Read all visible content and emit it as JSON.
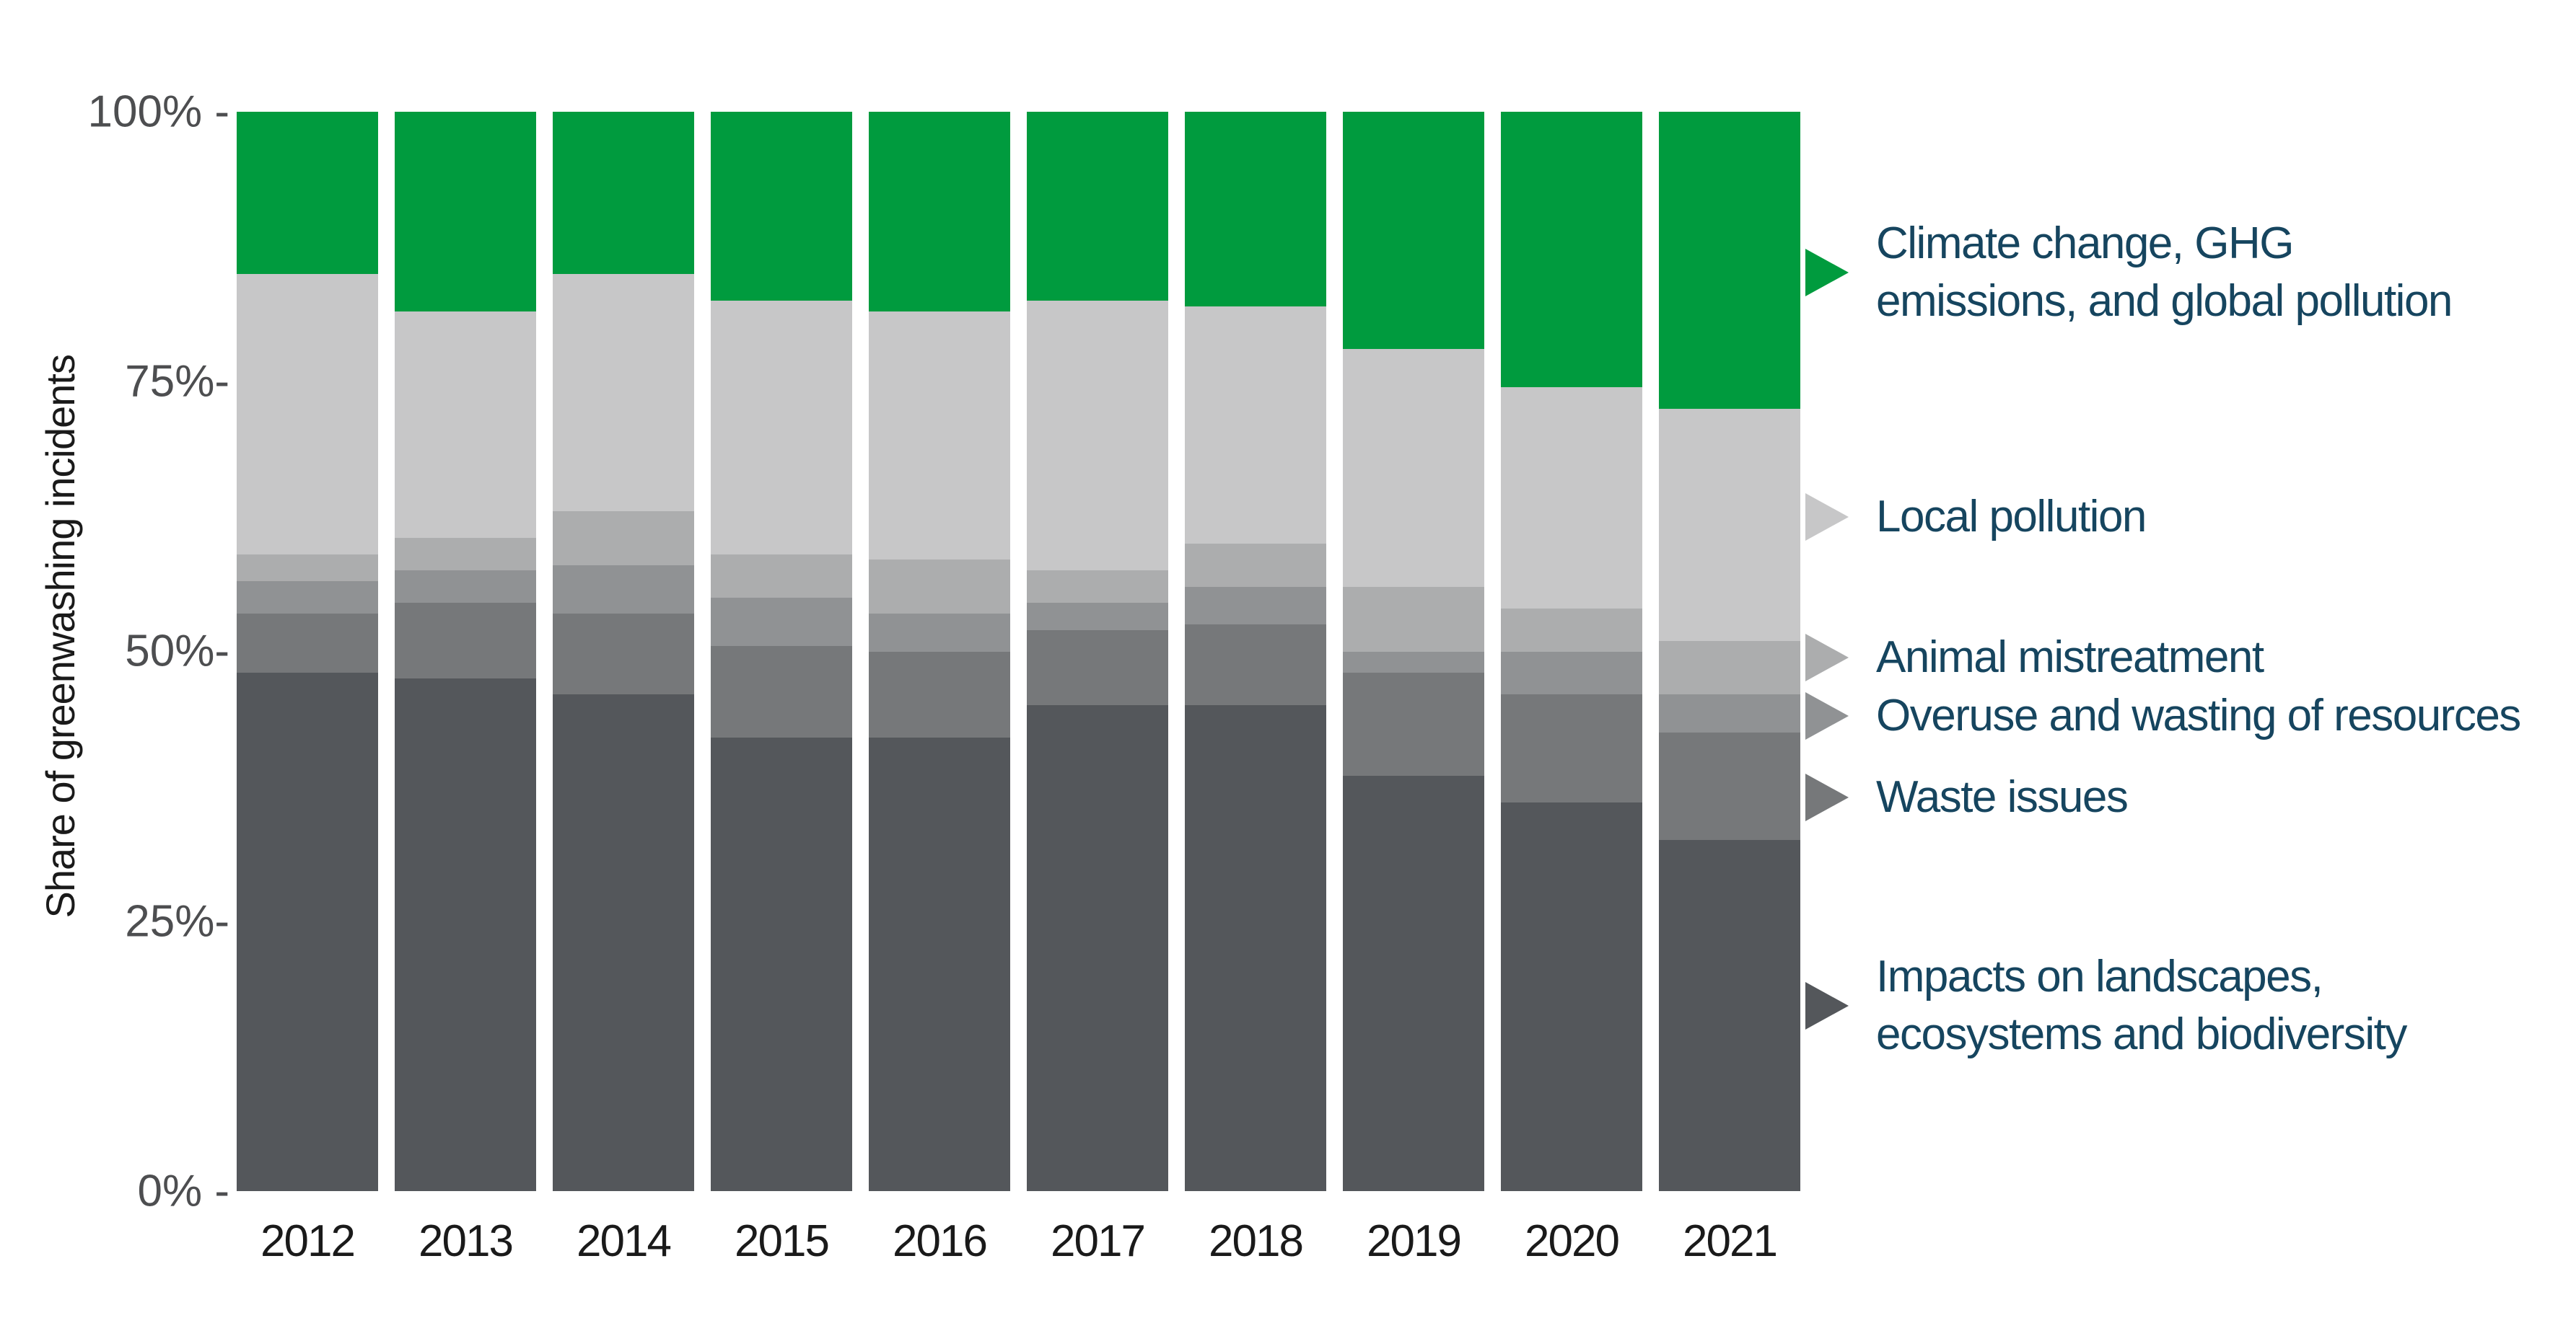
{
  "page": {
    "background": "#FFFFFF"
  },
  "y_axis": {
    "title": "Share of greenwashing incidents",
    "tick_labels": [
      "100% -",
      "75%-",
      "50%-",
      "25%-",
      "0% -"
    ],
    "tick_values": [
      100,
      75,
      50,
      25,
      0
    ],
    "tick_color": "#4D4E50",
    "title_color": "#1A1A1A"
  },
  "x_axis": {
    "labels": [
      "2012",
      "2013",
      "2014",
      "2015",
      "2016",
      "2017",
      "2018",
      "2019",
      "2020",
      "2021"
    ],
    "label_color": "#1A1A1A"
  },
  "legend": {
    "text_color": "#16455F",
    "marker_shape": "right-triangle",
    "items": [
      {
        "key": "climate",
        "lines": [
          "Climate change, GHG",
          "emissions, and global pollution"
        ],
        "marker_color": "#009B3E"
      },
      {
        "key": "local",
        "lines": [
          "Local pollution"
        ],
        "marker_color": "#C7C7C8"
      },
      {
        "key": "animal",
        "lines": [
          "Animal mistreatment"
        ],
        "marker_color": "#ACADAE"
      },
      {
        "key": "overuse",
        "lines": [
          "Overuse and wasting of resources"
        ],
        "marker_color": "#909294"
      },
      {
        "key": "waste",
        "lines": [
          "Waste issues"
        ],
        "marker_color": "#76787A"
      },
      {
        "key": "impacts",
        "lines": [
          "Impacts on landscapes,",
          "ecosystems and biodiversity"
        ],
        "marker_color": "#54575B"
      }
    ]
  },
  "chart_data": {
    "type": "bar",
    "stacked": true,
    "percent": true,
    "title": "",
    "xlabel": "",
    "ylabel": "Share of greenwashing incidents",
    "ylim": [
      0,
      100
    ],
    "grid": false,
    "legend_position": "right",
    "categories": [
      "2012",
      "2013",
      "2014",
      "2015",
      "2016",
      "2017",
      "2018",
      "2019",
      "2020",
      "2021"
    ],
    "series": [
      {
        "key": "impacts",
        "name": "Impacts on landscapes, ecosystems and biodiversity",
        "color": "#54575B",
        "values": [
          48,
          47.5,
          46,
          42,
          42,
          45,
          45,
          38.5,
          36,
          32.5
        ]
      },
      {
        "key": "waste",
        "name": "Waste issues",
        "color": "#76787A",
        "values": [
          5.5,
          7,
          7.5,
          8.5,
          8,
          7,
          7.5,
          9.5,
          10,
          10
        ]
      },
      {
        "key": "overuse",
        "name": "Overuse and wasting of resources",
        "color": "#909294",
        "values": [
          3,
          3,
          4.5,
          4.5,
          3.5,
          2.5,
          3.5,
          2,
          4,
          3.5
        ]
      },
      {
        "key": "animal",
        "name": "Animal mistreatment",
        "color": "#ACADAE",
        "values": [
          2.5,
          3,
          5,
          4,
          5,
          3,
          4,
          6,
          4,
          5
        ]
      },
      {
        "key": "local",
        "name": "Local pollution",
        "color": "#C7C7C8",
        "values": [
          26,
          21,
          22,
          23.5,
          23,
          25,
          22,
          22,
          20.5,
          21.5
        ]
      },
      {
        "key": "climate",
        "name": "Climate change, GHG emissions, and global pollution",
        "color": "#009B3E",
        "values": [
          15,
          18.5,
          15,
          17.5,
          18.5,
          17.5,
          18,
          22,
          25.5,
          27.5
        ]
      }
    ]
  }
}
